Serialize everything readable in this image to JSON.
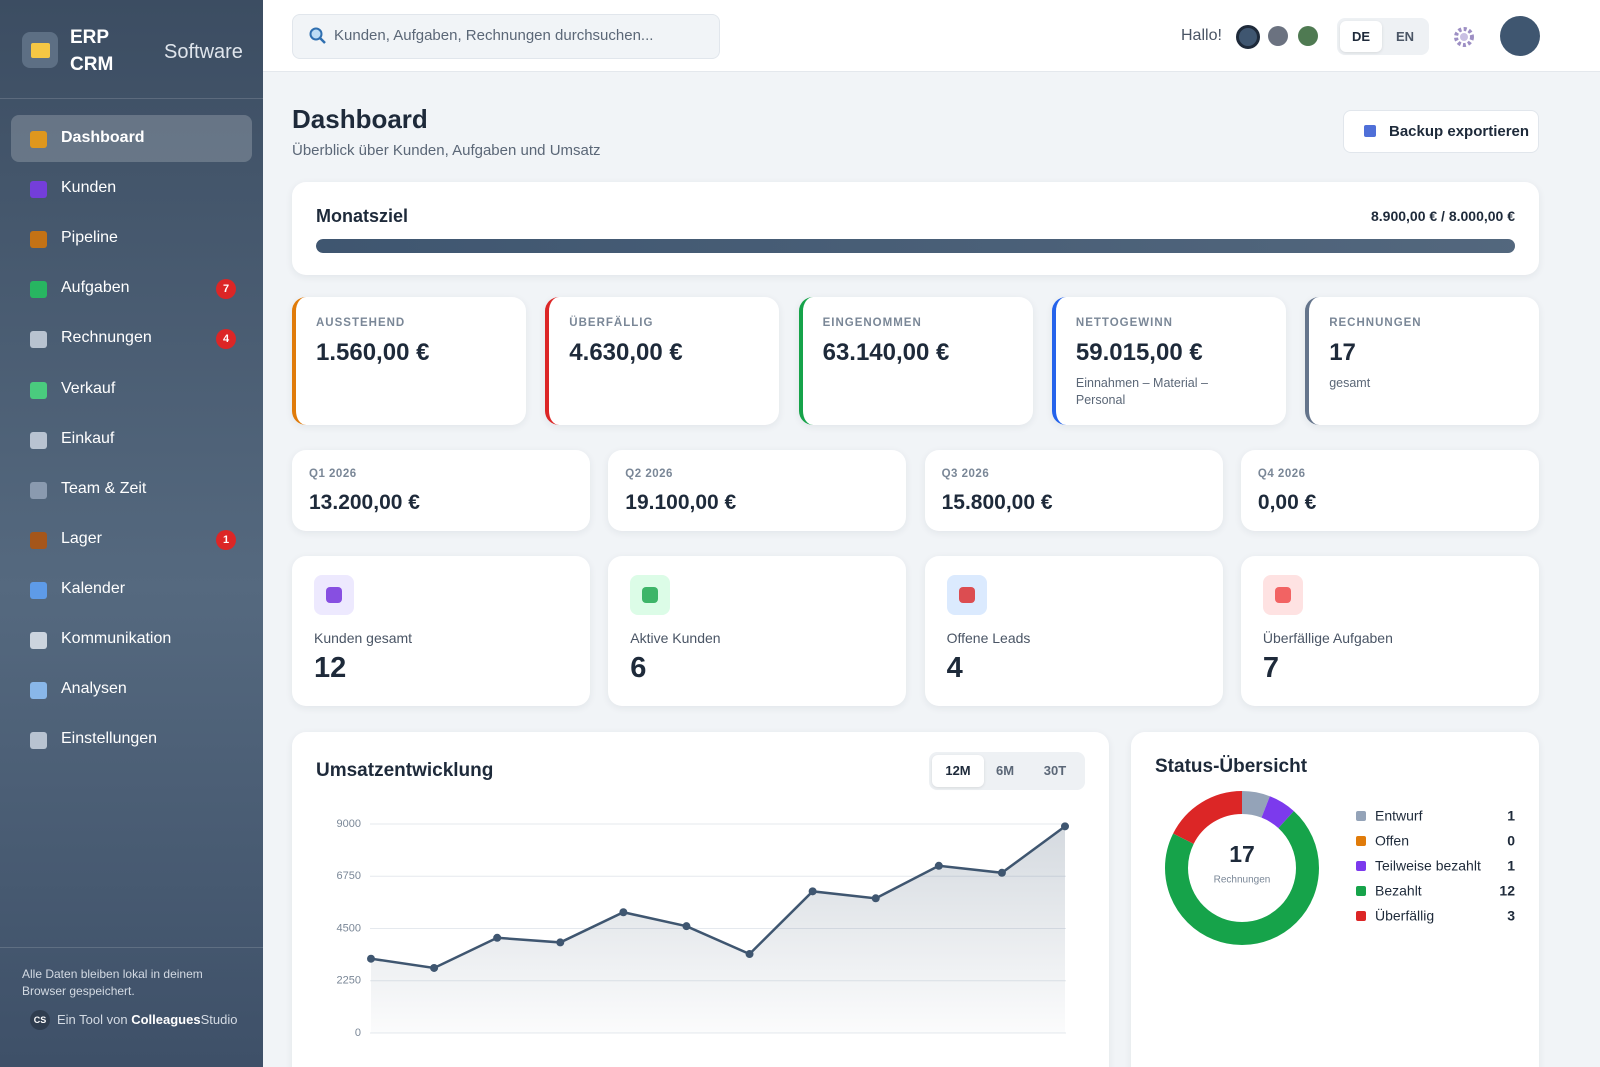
{
  "sidebar": {
    "brand": [
      "ERP",
      "CRM"
    ],
    "tagline": "Software",
    "nav": [
      {
        "label": "Dashboard",
        "active": true
      },
      {
        "label": "Kunden"
      },
      {
        "label": "Pipeline"
      },
      {
        "label": "Aufgaben",
        "badge": 7
      },
      {
        "label": "Rechnungen",
        "badge": 4
      },
      {
        "label": "Verkauf"
      },
      {
        "label": "Einkauf"
      },
      {
        "label": "Team & Zeit"
      },
      {
        "label": "Lager",
        "badge": 1
      },
      {
        "label": "Kalender"
      },
      {
        "label": "Kommunikation"
      },
      {
        "label": "Analysen"
      },
      {
        "label": "Einstellungen"
      }
    ],
    "footer_note": "Alle Daten bleiben lokal in deinem Browser gespeichert.",
    "credit_logo": "CS",
    "credit_prefix": "Ein Tool von",
    "credit_brand": "Colleagues",
    "credit_suffix": "Studio"
  },
  "header": {
    "search_placeholder": "Kunden, Aufgaben, Rechnungen durchsuchen...",
    "greeting": "Hallo!",
    "languages": [
      "DE",
      "EN"
    ]
  },
  "page": {
    "title": "Dashboard",
    "subtitle": "Überblick über Kunden, Aufgaben und Umsatz",
    "export_button": "Backup exportieren"
  },
  "goal": {
    "title": "Monatsziel",
    "label": "8.900,00 € / 8.000,00 €",
    "current": 8900,
    "target": 8000
  },
  "stats": [
    {
      "label": "AUSSTEHEND",
      "value": "1.560,00 €",
      "color": "#e07b0a"
    },
    {
      "label": "ÜBERFÄLLIG",
      "value": "4.630,00 €",
      "color": "#dc2626"
    },
    {
      "label": "EINGENOMMEN",
      "value": "63.140,00 €",
      "color": "#16a34a"
    },
    {
      "label": "NETTOGEWINN",
      "value": "59.015,00 €",
      "note": "Einnahmen – Material – Personal",
      "color": "#2563eb"
    },
    {
      "label": "RECHNUNGEN",
      "value": "17",
      "note": "gesamt",
      "color": "#64748b"
    }
  ],
  "quarters": [
    {
      "label": "Q1 2026",
      "value": "13.200,00 €"
    },
    {
      "label": "Q2 2026",
      "value": "19.100,00 €"
    },
    {
      "label": "Q3 2026",
      "value": "15.800,00 €"
    },
    {
      "label": "Q4 2026",
      "value": "0,00 €"
    }
  ],
  "counters": [
    {
      "label": "Kunden gesamt",
      "value": "12",
      "color": "#ede9fe"
    },
    {
      "label": "Aktive Kunden",
      "value": "6",
      "color": "#dcfce7"
    },
    {
      "label": "Offene Leads",
      "value": "4",
      "color": "#dbeafe"
    },
    {
      "label": "Überfällige Aufgaben",
      "value": "7",
      "color": "#fee2e2"
    }
  ],
  "chart_data": [
    {
      "type": "line",
      "title": "Umsatzentwicklung",
      "ranges": [
        "12M",
        "6M",
        "30T"
      ],
      "categories": [
        null,
        null,
        null,
        null,
        null,
        null,
        null,
        null,
        null,
        null,
        null,
        null
      ],
      "values": [
        3200,
        2800,
        4100,
        3900,
        5200,
        4600,
        3400,
        6100,
        5800,
        7200,
        6900,
        8900
      ],
      "color": "#3f5670",
      "ylim": [
        0,
        9000
      ],
      "yticks": [
        0,
        2250,
        4500,
        6750,
        9000
      ],
      "grid": true
    },
    {
      "type": "pie",
      "title": "Status-Übersicht",
      "donut": true,
      "categories": [
        "Entwurf",
        "Offen",
        "Teilweise bezahlt",
        "Bezahlt",
        "Überfällig"
      ],
      "values": [
        1,
        0,
        1,
        12,
        3
      ],
      "colors": [
        "#94a3b8",
        "#e07b0a",
        "#7c3aed",
        "#16a34a",
        "#dc2626"
      ],
      "center_value": 17,
      "center_label": "Rechnungen"
    }
  ]
}
